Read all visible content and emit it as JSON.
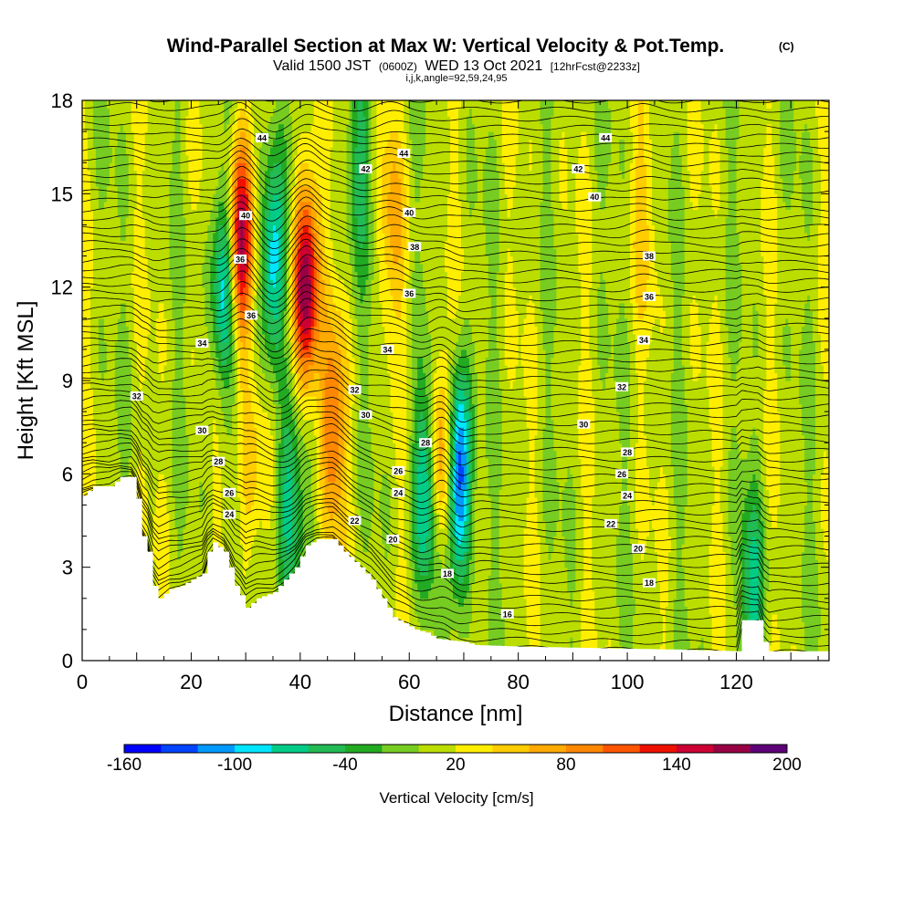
{
  "colors": {
    "levels": [
      "#0000ff",
      "#0044ff",
      "#0099ff",
      "#00e5ff",
      "#00cc88",
      "#22bb55",
      "#22aa22",
      "#77cc22",
      "#bbdd00",
      "#ffee00",
      "#ffcc00",
      "#ffaa00",
      "#ff8800",
      "#ff5500",
      "#ee1100",
      "#cc0033",
      "#990044",
      "#5e0077"
    ],
    "terrain": "#ffffff",
    "contour": "#000000"
  },
  "chart_data": {
    "type": "heatmap",
    "title": "Wind-Parallel Section at Max W: Vertical Velocity & Pot.Temp.",
    "title_unit": "(C)",
    "subtitle": {
      "part1": "Valid 1500 JST",
      "part2": "(0600Z)",
      "part3": "WED 13 Oct 2021",
      "part4": "[12hrFcst@2233z]",
      "line3": "i,j,k,angle=92,59,24,95"
    },
    "xlabel": "Distance [nm]",
    "ylabel": "Height [Kft MSL]",
    "xlim": [
      0,
      137
    ],
    "ylim": [
      0,
      18
    ],
    "x_ticks": [
      "0",
      "20",
      "40",
      "60",
      "80",
      "100",
      "120"
    ],
    "y_ticks": [
      "0",
      "3",
      "6",
      "9",
      "12",
      "15",
      "18"
    ],
    "colorbar": {
      "title": "Vertical Velocity [cm/s]",
      "min": -160,
      "max": 200,
      "step": 20,
      "tick_labels": [
        "-160",
        "-100",
        "-40",
        "20",
        "80",
        "140",
        "200"
      ]
    },
    "updrafts": [
      {
        "x": 29,
        "z": 13.5,
        "w": 180
      },
      {
        "x": 41,
        "z": 12.0,
        "w": 190
      },
      {
        "x": 46,
        "z": 7.5,
        "w": 100
      },
      {
        "x": 66,
        "z": 6.5,
        "w": 120
      },
      {
        "x": 31,
        "z": 6.0,
        "w": 60
      },
      {
        "x": 103,
        "z": 14.5,
        "w": 40
      },
      {
        "x": 57,
        "z": 14.0,
        "w": 60
      }
    ],
    "downdrafts": [
      {
        "x": 26,
        "z": 12.0,
        "w": -100
      },
      {
        "x": 35,
        "z": 13.0,
        "w": -110
      },
      {
        "x": 69,
        "z": 6.0,
        "w": -160
      },
      {
        "x": 63,
        "z": 5.5,
        "w": -90
      },
      {
        "x": 38,
        "z": 5.0,
        "w": -80
      },
      {
        "x": 123,
        "z": 2.0,
        "w": -60
      },
      {
        "x": 51,
        "z": 16.0,
        "w": -40
      }
    ],
    "theta_contour_labels": [
      {
        "text": "44",
        "x": 33,
        "z": 16.8
      },
      {
        "text": "44",
        "x": 59,
        "z": 16.3
      },
      {
        "text": "44",
        "x": 96,
        "z": 16.8
      },
      {
        "text": "42",
        "x": 52,
        "z": 15.8
      },
      {
        "text": "42",
        "x": 91,
        "z": 15.8
      },
      {
        "text": "40",
        "x": 30,
        "z": 14.3
      },
      {
        "text": "40",
        "x": 60,
        "z": 14.4
      },
      {
        "text": "40",
        "x": 94,
        "z": 14.9
      },
      {
        "text": "38",
        "x": 61,
        "z": 13.3
      },
      {
        "text": "38",
        "x": 104,
        "z": 13.0
      },
      {
        "text": "36",
        "x": 29,
        "z": 12.9
      },
      {
        "text": "36",
        "x": 60,
        "z": 11.8
      },
      {
        "text": "36",
        "x": 104,
        "z": 11.7
      },
      {
        "text": "36",
        "x": 31,
        "z": 11.1
      },
      {
        "text": "34",
        "x": 22,
        "z": 10.2
      },
      {
        "text": "34",
        "x": 56,
        "z": 10.0
      },
      {
        "text": "34",
        "x": 103,
        "z": 10.3
      },
      {
        "text": "32",
        "x": 10,
        "z": 8.5
      },
      {
        "text": "32",
        "x": 50,
        "z": 8.7
      },
      {
        "text": "32",
        "x": 99,
        "z": 8.8
      },
      {
        "text": "30",
        "x": 22,
        "z": 7.4
      },
      {
        "text": "30",
        "x": 52,
        "z": 7.9
      },
      {
        "text": "30",
        "x": 92,
        "z": 7.6
      },
      {
        "text": "28",
        "x": 25,
        "z": 6.4
      },
      {
        "text": "28",
        "x": 63,
        "z": 7.0
      },
      {
        "text": "28",
        "x": 100,
        "z": 6.7
      },
      {
        "text": "26",
        "x": 27,
        "z": 5.4
      },
      {
        "text": "26",
        "x": 58,
        "z": 6.1
      },
      {
        "text": "26",
        "x": 99,
        "z": 6.0
      },
      {
        "text": "24",
        "x": 27,
        "z": 4.7
      },
      {
        "text": "24",
        "x": 58,
        "z": 5.4
      },
      {
        "text": "24",
        "x": 100,
        "z": 5.3
      },
      {
        "text": "22",
        "x": 50,
        "z": 4.5
      },
      {
        "text": "22",
        "x": 97,
        "z": 4.4
      },
      {
        "text": "20",
        "x": 57,
        "z": 3.9
      },
      {
        "text": "20",
        "x": 102,
        "z": 3.6
      },
      {
        "text": "18",
        "x": 67,
        "z": 2.8
      },
      {
        "text": "18",
        "x": 104,
        "z": 2.5
      },
      {
        "text": "16",
        "x": 78,
        "z": 1.5
      }
    ],
    "terrain_profile": [
      [
        0,
        5.3
      ],
      [
        2,
        5.6
      ],
      [
        5,
        5.6
      ],
      [
        7,
        5.9
      ],
      [
        9,
        5.9
      ],
      [
        10,
        5.2
      ],
      [
        11,
        4.0
      ],
      [
        12,
        3.5
      ],
      [
        13,
        2.4
      ],
      [
        14,
        2.0
      ],
      [
        16,
        2.3
      ],
      [
        18,
        2.4
      ],
      [
        20,
        2.6
      ],
      [
        22,
        2.8
      ],
      [
        23,
        3.5
      ],
      [
        24,
        3.8
      ],
      [
        26,
        3.5
      ],
      [
        27,
        3.0
      ],
      [
        28,
        2.4
      ],
      [
        29,
        2.1
      ],
      [
        30,
        1.7
      ],
      [
        32,
        2.0
      ],
      [
        35,
        2.2
      ],
      [
        37,
        2.6
      ],
      [
        39,
        3.0
      ],
      [
        41,
        3.7
      ],
      [
        43,
        3.9
      ],
      [
        46,
        3.9
      ],
      [
        48,
        3.5
      ],
      [
        51,
        3.0
      ],
      [
        53,
        2.6
      ],
      [
        55,
        2.0
      ],
      [
        57,
        1.4
      ],
      [
        59,
        1.2
      ],
      [
        61,
        1.0
      ],
      [
        63,
        0.9
      ],
      [
        65,
        0.7
      ],
      [
        70,
        0.6
      ],
      [
        72,
        0.5
      ],
      [
        80,
        0.45
      ],
      [
        95,
        0.4
      ],
      [
        110,
        0.35
      ],
      [
        120,
        0.3
      ],
      [
        121,
        1.3
      ],
      [
        124,
        1.3
      ],
      [
        125,
        0.6
      ],
      [
        126,
        0.3
      ],
      [
        130,
        0.3
      ],
      [
        137,
        0.3
      ]
    ]
  }
}
